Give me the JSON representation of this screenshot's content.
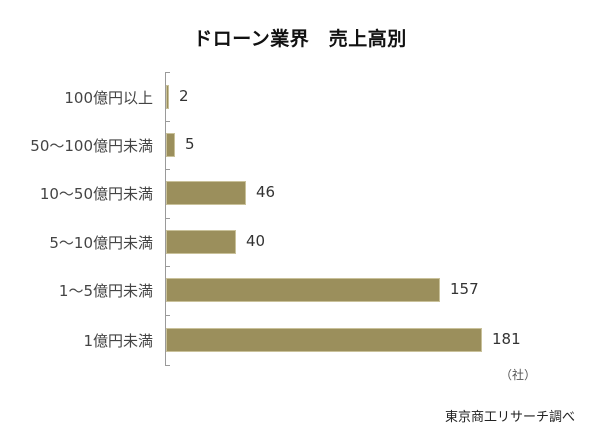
{
  "title": "ドローン業界　売上高別",
  "unit_label": "（社）",
  "source": "東京商工リサーチ調べ",
  "colors": {
    "bar": "#9b8f5c",
    "axis": "#9a9a9a"
  },
  "rows": [
    {
      "label": "100億円以上",
      "value": "2"
    },
    {
      "label": "50～100億円未満",
      "value": "5"
    },
    {
      "label": "10～50億円未満",
      "value": "46"
    },
    {
      "label": "5～10億円未満",
      "value": "40"
    },
    {
      "label": "1～5億円未満",
      "value": "157"
    },
    {
      "label": "1億円未満",
      "value": "181"
    }
  ],
  "chart_data": {
    "type": "bar",
    "orientation": "horizontal",
    "title": "ドローン業界　売上高別",
    "categories": [
      "100億円以上",
      "50～100億円未満",
      "10～50億円未満",
      "5～10億円未満",
      "1～5億円未満",
      "1億円未満"
    ],
    "values": [
      2,
      5,
      46,
      40,
      157,
      181
    ],
    "xlabel": "（社）",
    "ylabel": "",
    "data_labels": true,
    "grid": false,
    "legend": null,
    "annotations": [
      "東京商工リサーチ調べ"
    ]
  }
}
